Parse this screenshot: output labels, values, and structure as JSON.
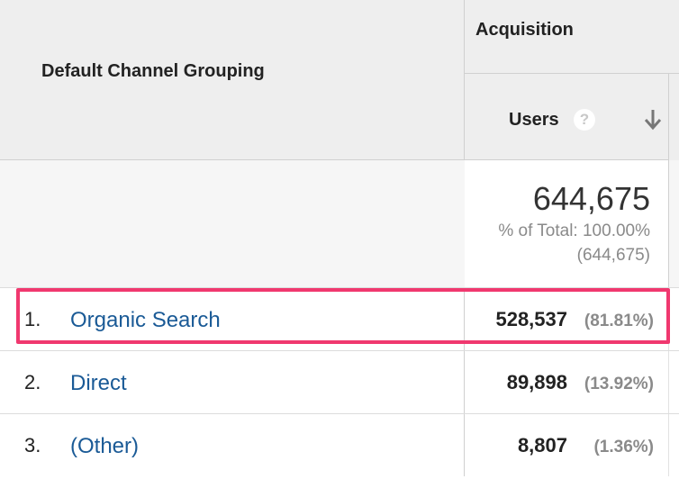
{
  "header": {
    "dimension_label": "Default Channel Grouping",
    "group_label": "Acquisition",
    "metric_label": "Users",
    "help_symbol": "?"
  },
  "totals": {
    "value": "644,675",
    "percent_label": "% of Total: 100.00%",
    "absolute": "(644,675)"
  },
  "rows": [
    {
      "index": "1.",
      "channel": "Organic Search",
      "users": "528,537",
      "percent": "(81.81%)"
    },
    {
      "index": "2.",
      "channel": "Direct",
      "users": "89,898",
      "percent": "(13.92%)"
    },
    {
      "index": "3.",
      "channel": "(Other)",
      "users": "8,807",
      "percent": "(1.36%)"
    }
  ],
  "highlight_color": "#f0386f",
  "link_color": "#1a5a96",
  "icons": {
    "help": "help-circle-icon",
    "sort": "sort-down-arrow-icon"
  }
}
